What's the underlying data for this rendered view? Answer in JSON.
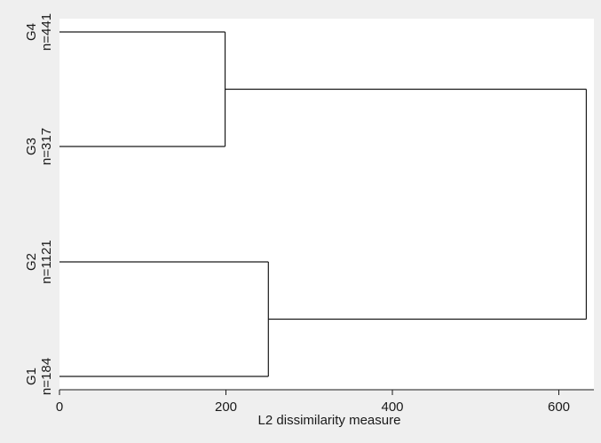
{
  "chart_data": {
    "type": "dendrogram",
    "title": "",
    "xlabel": "L2 dissimilarity measure",
    "ylabel": "",
    "xlim": [
      0,
      645
    ],
    "x_ticks": [
      0,
      200,
      400,
      600
    ],
    "x_tick_labels": [
      "0",
      "200",
      "400",
      "600"
    ],
    "grid": false,
    "orientation": "horizontal",
    "leaves": [
      {
        "name": "G4",
        "count": "n=441"
      },
      {
        "name": "G3",
        "count": "n=317"
      },
      {
        "name": "G2",
        "count": "n=1121"
      },
      {
        "name": "G1",
        "count": "n=184"
      }
    ],
    "merges": [
      {
        "left": "G4",
        "right": "G3",
        "height": 199
      },
      {
        "left": "G2",
        "right": "G1",
        "height": 251
      },
      {
        "left": "G4+G3",
        "right": "G2+G1",
        "height": 633
      }
    ]
  },
  "colors": {
    "background": "#efefef",
    "plot_area": "#ffffff",
    "lines": "#1a1a1a"
  }
}
